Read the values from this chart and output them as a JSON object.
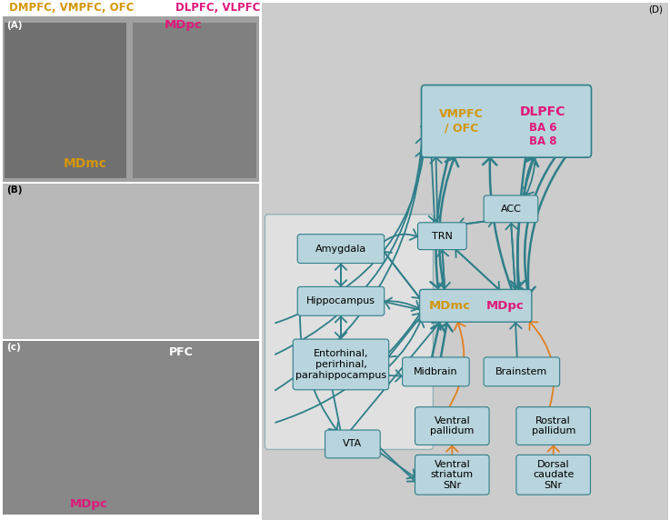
{
  "teal": "#2e7f8a",
  "orange_arrow": "#e08020",
  "box_bg": "#b8d4dc",
  "pink": "#e0187a",
  "gold": "#d4960a",
  "label_A": "(A)",
  "label_B": "(B)",
  "label_C": "(c)",
  "label_D": "(D)",
  "top_left_text1": "DMPFC, VMPFC, OFC",
  "top_left_text2": "DLPFC, VLPFC",
  "top_mdpc": "MDpc",
  "top_mdmc": "MDmc",
  "node_amygdala": "Amygdala",
  "node_hippocampus": "Hippocampus",
  "node_entorhinal": "Entorhinal,\nperirhinal,\nparahippocampus",
  "node_vta": "VTA",
  "node_trn": "TRN",
  "node_acc": "ACC",
  "node_midbrain": "Midbrain",
  "node_brainstem": "Brainstem",
  "node_vpallidum": "Ventral\npallidum",
  "node_rpallidum": "Rostral\npallidum",
  "node_vstriatum": "Ventral\nstriatum\nSNr",
  "node_dcaudate": "Dorsal\ncaudate\nSNr",
  "bg_gray": "#d0d0d0"
}
